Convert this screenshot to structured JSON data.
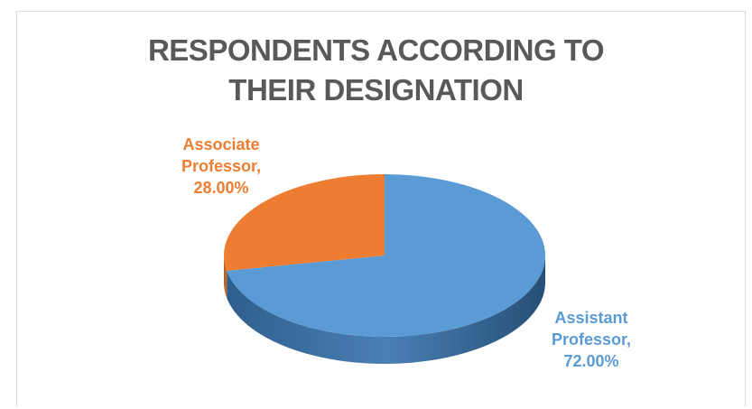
{
  "chart_data": {
    "type": "pie",
    "title": "RESPONDENTS ACCORDING TO THEIR DESIGNATION",
    "title_lines": [
      "RESPONDENTS ACCORDING TO",
      "THEIR DESIGNATION"
    ],
    "slices": [
      {
        "name": "Assistant Professor",
        "value": 72.0,
        "label_lines": [
          "Assistant",
          "Professor,",
          "72.00%"
        ],
        "color": "#5b9bd5"
      },
      {
        "name": "Associate Professor",
        "value": 28.0,
        "label_lines": [
          "Associate",
          "Professor,",
          "28.00%"
        ],
        "color": "#ed7d31"
      }
    ],
    "style": "3d-pie",
    "legend": "none",
    "data_labels": "category-name-and-percent"
  }
}
